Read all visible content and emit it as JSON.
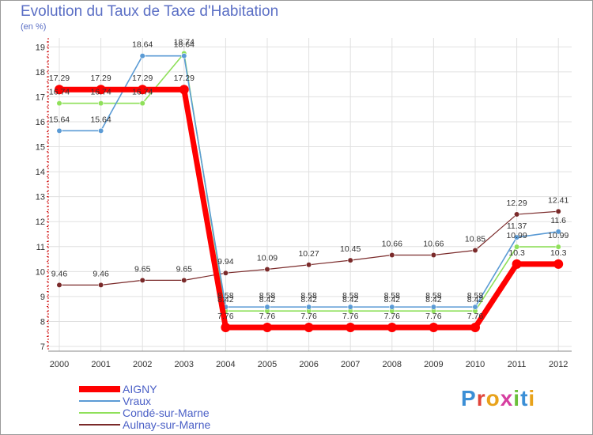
{
  "title": "Evolution du Taux de Taxe d'Habitation",
  "unit": "(en %)",
  "logo": "Proxiti",
  "colors": {
    "AIGNY": "#ff0000",
    "Vraux": "#5b9bd5",
    "Condé-sur-Marne": "#8fe05a",
    "Aulnay-sur-Marne": "#7a2a2a",
    "title": "#5b6fc5",
    "grid": "#e0e0e0"
  },
  "chart_data": {
    "type": "line",
    "title": "Evolution du Taux de Taxe d'Habitation",
    "ylabel": "(en %)",
    "x": [
      "2000",
      "2001",
      "2002",
      "2003",
      "2004",
      "2005",
      "2006",
      "2007",
      "2008",
      "2009",
      "2010",
      "2011",
      "2012"
    ],
    "yticks": [
      7,
      8,
      9,
      10,
      11,
      12,
      13,
      14,
      15,
      16,
      17,
      18,
      19
    ],
    "ylim": [
      7,
      19.2
    ],
    "grid": true,
    "legend_position": "bottom-left",
    "series": [
      {
        "name": "AIGNY",
        "values": [
          17.29,
          17.29,
          17.29,
          17.29,
          7.76,
          7.76,
          7.76,
          7.76,
          7.76,
          7.76,
          7.76,
          10.3,
          10.3
        ]
      },
      {
        "name": "Vraux",
        "values": [
          15.64,
          15.64,
          18.64,
          18.64,
          8.58,
          8.58,
          8.58,
          8.58,
          8.58,
          8.58,
          8.58,
          11.37,
          11.6
        ]
      },
      {
        "name": "Condé-sur-Marne",
        "values": [
          16.74,
          16.74,
          16.74,
          18.74,
          8.42,
          8.42,
          8.42,
          8.42,
          8.42,
          8.42,
          8.42,
          10.99,
          10.99
        ]
      },
      {
        "name": "Aulnay-sur-Marne",
        "values": [
          9.46,
          9.46,
          9.65,
          9.65,
          9.94,
          10.09,
          10.27,
          10.45,
          10.66,
          10.66,
          10.85,
          12.29,
          12.41
        ]
      }
    ]
  }
}
